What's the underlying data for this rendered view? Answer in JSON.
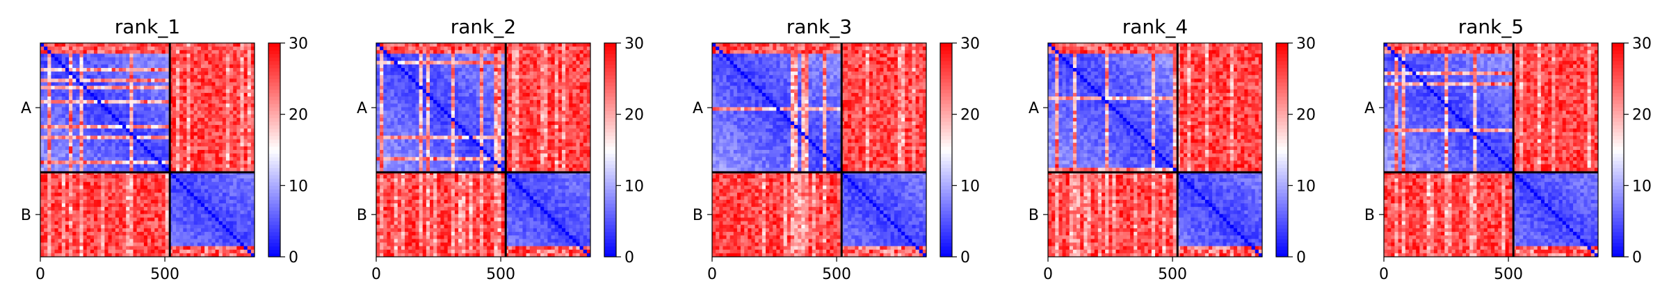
{
  "colors": {
    "low": "#0000ff",
    "mid": "#ffffff",
    "high": "#ff0000",
    "divider": "#000000"
  },
  "colormap": "bwr",
  "chart_data": [
    {
      "type": "heatmap",
      "title": "rank_1",
      "chains": [
        {
          "name": "A",
          "start": 0,
          "end": 520
        },
        {
          "name": "B",
          "start": 520,
          "end": 860
        }
      ],
      "xlim": [
        0,
        860
      ],
      "xticks": [
        0,
        500
      ],
      "ylabels": [
        "A",
        "B"
      ],
      "colorbar": {
        "min": 0,
        "max": 30,
        "ticks": [
          0,
          10,
          20,
          30
        ]
      },
      "values_description": "Chain A–A and B–B blocks mostly blue (0–10); A–B and B–A blocks red (≈30)."
    },
    {
      "type": "heatmap",
      "title": "rank_2",
      "chains": [
        {
          "name": "A",
          "start": 0,
          "end": 520
        },
        {
          "name": "B",
          "start": 520,
          "end": 860
        }
      ],
      "xlim": [
        0,
        860
      ],
      "xticks": [
        0,
        500
      ],
      "ylabels": [
        "A",
        "B"
      ],
      "colorbar": {
        "min": 0,
        "max": 30,
        "ticks": [
          0,
          10,
          20,
          30
        ]
      }
    },
    {
      "type": "heatmap",
      "title": "rank_3",
      "chains": [
        {
          "name": "A",
          "start": 0,
          "end": 520
        },
        {
          "name": "B",
          "start": 520,
          "end": 860
        }
      ],
      "xlim": [
        0,
        860
      ],
      "xticks": [
        0,
        500
      ],
      "ylabels": [
        "A",
        "B"
      ],
      "colorbar": {
        "min": 0,
        "max": 30,
        "ticks": [
          0,
          10,
          20,
          30
        ]
      }
    },
    {
      "type": "heatmap",
      "title": "rank_4",
      "chains": [
        {
          "name": "A",
          "start": 0,
          "end": 520
        },
        {
          "name": "B",
          "start": 520,
          "end": 860
        }
      ],
      "xlim": [
        0,
        860
      ],
      "xticks": [
        0,
        500
      ],
      "ylabels": [
        "A",
        "B"
      ],
      "colorbar": {
        "min": 0,
        "max": 30,
        "ticks": [
          0,
          10,
          20,
          30
        ]
      }
    },
    {
      "type": "heatmap",
      "title": "rank_5",
      "chains": [
        {
          "name": "A",
          "start": 0,
          "end": 520
        },
        {
          "name": "B",
          "start": 520,
          "end": 860
        }
      ],
      "xlim": [
        0,
        860
      ],
      "xticks": [
        0,
        500
      ],
      "ylabels": [
        "A",
        "B"
      ],
      "colorbar": {
        "min": 0,
        "max": 30,
        "ticks": [
          0,
          10,
          20,
          30
        ]
      }
    }
  ]
}
